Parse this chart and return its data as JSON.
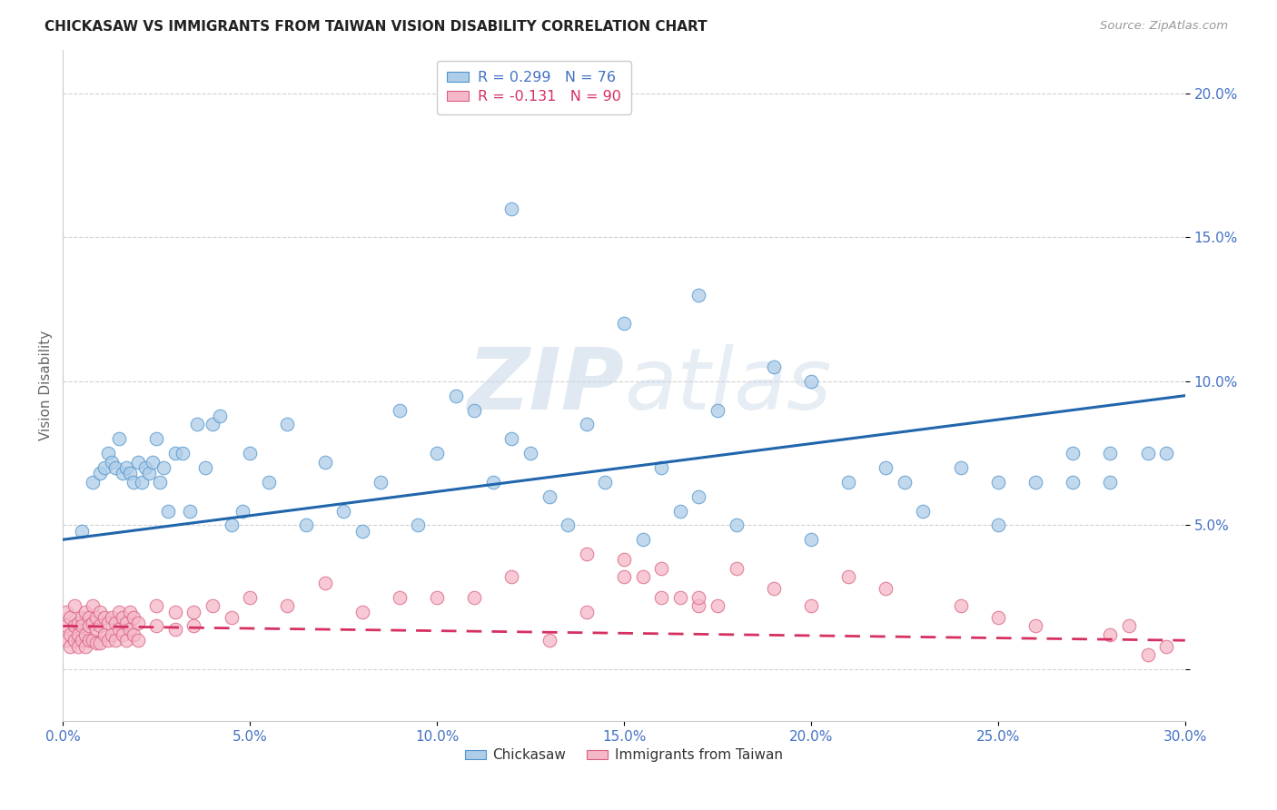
{
  "title": "CHICKASAW VS IMMIGRANTS FROM TAIWAN VISION DISABILITY CORRELATION CHART",
  "source": "Source: ZipAtlas.com",
  "ylabel_label": "Vision Disability",
  "xlim": [
    0.0,
    0.3
  ],
  "ylim": [
    -0.018,
    0.215
  ],
  "yticks": [
    0.0,
    0.05,
    0.1,
    0.15,
    0.2
  ],
  "xticks": [
    0.0,
    0.05,
    0.1,
    0.15,
    0.2,
    0.25,
    0.3
  ],
  "legend_labels": [
    "Chickasaw",
    "Immigrants from Taiwan"
  ],
  "blue_color": "#aecde8",
  "blue_edge_color": "#4f94cd",
  "pink_color": "#f5b8c8",
  "pink_edge_color": "#d96080",
  "blue_line_color": "#2166ac",
  "pink_line_color": "#d63060",
  "blue_R": 0.299,
  "blue_N": 76,
  "pink_R": -0.131,
  "pink_N": 90,
  "blue_scatter_x": [
    0.005,
    0.008,
    0.01,
    0.011,
    0.012,
    0.013,
    0.014,
    0.015,
    0.016,
    0.017,
    0.018,
    0.019,
    0.02,
    0.021,
    0.022,
    0.023,
    0.024,
    0.025,
    0.026,
    0.027,
    0.028,
    0.03,
    0.032,
    0.034,
    0.036,
    0.038,
    0.04,
    0.042,
    0.045,
    0.048,
    0.05,
    0.055,
    0.06,
    0.065,
    0.07,
    0.075,
    0.08,
    0.085,
    0.09,
    0.095,
    0.1,
    0.105,
    0.11,
    0.115,
    0.12,
    0.125,
    0.13,
    0.135,
    0.14,
    0.145,
    0.15,
    0.155,
    0.16,
    0.165,
    0.17,
    0.175,
    0.18,
    0.19,
    0.2,
    0.21,
    0.22,
    0.23,
    0.24,
    0.25,
    0.26,
    0.27,
    0.28,
    0.29,
    0.12,
    0.17,
    0.2,
    0.225,
    0.25,
    0.27,
    0.28,
    0.295
  ],
  "blue_scatter_y": [
    0.048,
    0.065,
    0.068,
    0.07,
    0.075,
    0.072,
    0.07,
    0.08,
    0.068,
    0.07,
    0.068,
    0.065,
    0.072,
    0.065,
    0.07,
    0.068,
    0.072,
    0.08,
    0.065,
    0.07,
    0.055,
    0.075,
    0.075,
    0.055,
    0.085,
    0.07,
    0.085,
    0.088,
    0.05,
    0.055,
    0.075,
    0.065,
    0.085,
    0.05,
    0.072,
    0.055,
    0.048,
    0.065,
    0.09,
    0.05,
    0.075,
    0.095,
    0.09,
    0.065,
    0.08,
    0.075,
    0.06,
    0.05,
    0.085,
    0.065,
    0.12,
    0.045,
    0.07,
    0.055,
    0.06,
    0.09,
    0.05,
    0.105,
    0.1,
    0.065,
    0.07,
    0.055,
    0.07,
    0.05,
    0.065,
    0.075,
    0.065,
    0.075,
    0.16,
    0.13,
    0.045,
    0.065,
    0.065,
    0.065,
    0.075,
    0.075
  ],
  "pink_scatter_x": [
    0.001,
    0.001,
    0.001,
    0.002,
    0.002,
    0.002,
    0.003,
    0.003,
    0.003,
    0.004,
    0.004,
    0.004,
    0.005,
    0.005,
    0.005,
    0.006,
    0.006,
    0.006,
    0.007,
    0.007,
    0.007,
    0.008,
    0.008,
    0.008,
    0.009,
    0.009,
    0.009,
    0.01,
    0.01,
    0.01,
    0.011,
    0.011,
    0.012,
    0.012,
    0.013,
    0.013,
    0.014,
    0.014,
    0.015,
    0.015,
    0.016,
    0.016,
    0.017,
    0.017,
    0.018,
    0.018,
    0.019,
    0.019,
    0.02,
    0.02,
    0.025,
    0.025,
    0.03,
    0.03,
    0.035,
    0.035,
    0.04,
    0.045,
    0.05,
    0.06,
    0.07,
    0.08,
    0.09,
    0.1,
    0.11,
    0.12,
    0.13,
    0.14,
    0.15,
    0.16,
    0.17,
    0.18,
    0.19,
    0.2,
    0.21,
    0.22,
    0.24,
    0.25,
    0.26,
    0.28,
    0.29,
    0.14,
    0.15,
    0.155,
    0.16,
    0.165,
    0.17,
    0.175,
    0.285,
    0.295
  ],
  "pink_scatter_y": [
    0.02,
    0.015,
    0.01,
    0.018,
    0.012,
    0.008,
    0.022,
    0.015,
    0.01,
    0.016,
    0.012,
    0.008,
    0.018,
    0.015,
    0.01,
    0.02,
    0.012,
    0.008,
    0.018,
    0.015,
    0.01,
    0.022,
    0.016,
    0.01,
    0.018,
    0.014,
    0.009,
    0.02,
    0.015,
    0.009,
    0.018,
    0.012,
    0.016,
    0.01,
    0.018,
    0.012,
    0.016,
    0.01,
    0.02,
    0.014,
    0.018,
    0.012,
    0.016,
    0.01,
    0.02,
    0.014,
    0.018,
    0.012,
    0.016,
    0.01,
    0.022,
    0.015,
    0.02,
    0.014,
    0.02,
    0.015,
    0.022,
    0.018,
    0.025,
    0.022,
    0.03,
    0.02,
    0.025,
    0.025,
    0.025,
    0.032,
    0.01,
    0.02,
    0.032,
    0.025,
    0.022,
    0.035,
    0.028,
    0.022,
    0.032,
    0.028,
    0.022,
    0.018,
    0.015,
    0.012,
    0.005,
    0.04,
    0.038,
    0.032,
    0.035,
    0.025,
    0.025,
    0.022,
    0.015,
    0.008
  ]
}
